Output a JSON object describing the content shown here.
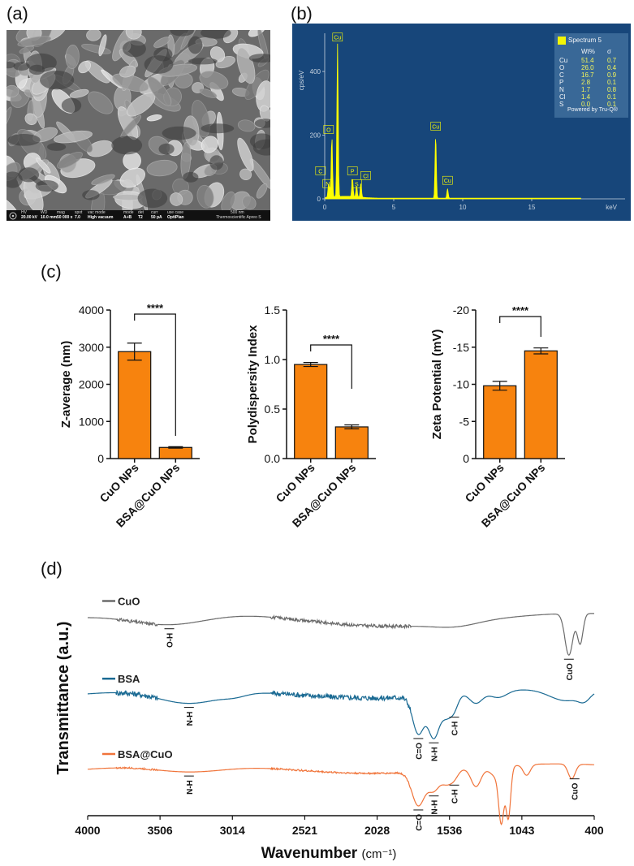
{
  "panels": {
    "a": "(a)",
    "b": "(b)",
    "c": "(c)",
    "d": "(d)"
  },
  "colors": {
    "bar_fill": "#f7830e",
    "cuo_line": "#6b6b6b",
    "bsa_line": "#1a6a93",
    "bsa_cuo_line": "#f0743a",
    "eds_bg": "#17467a",
    "eds_spectrum": "#ffff00"
  },
  "sem": {
    "info_bar": [
      {
        "k": "HV",
        "v": "20.00 kV"
      },
      {
        "k": "WD",
        "v": "10.0 mm"
      },
      {
        "k": "mag",
        "v": "50 000 x"
      },
      {
        "k": "spot",
        "v": "7.0"
      },
      {
        "k": "vac mode",
        "v": "High vacuum"
      },
      {
        "k": "mode",
        "v": "A+B"
      },
      {
        "k": "det",
        "v": "T2"
      },
      {
        "k": "curr",
        "v": "50 pA"
      },
      {
        "k": "use case",
        "v": "OptiPlan"
      }
    ],
    "scale_label": "500 nm",
    "brand": "Thermoscientific Apreo S"
  },
  "chart_data": [
    {
      "id": "eds",
      "type": "line",
      "title": "",
      "xlabel": "keV",
      "ylabel": "cps/eV",
      "xlim": [
        0,
        20
      ],
      "ylim": [
        0,
        520
      ],
      "x_ticks": [
        0,
        5,
        10,
        15
      ],
      "y_ticks": [
        0,
        200,
        400
      ],
      "peaks": [
        {
          "element": "C",
          "kev": 0.28,
          "cps": 40
        },
        {
          "element": "N",
          "kev": 0.39,
          "cps": 25
        },
        {
          "element": "O",
          "kev": 0.52,
          "cps": 190
        },
        {
          "element": "Cu",
          "kev": 0.93,
          "cps": 480
        },
        {
          "element": "P",
          "kev": 2.01,
          "cps": 60
        },
        {
          "element": "S",
          "kev": 2.31,
          "cps": 35
        },
        {
          "element": "Cl",
          "kev": 2.62,
          "cps": 45
        },
        {
          "element": "Cu",
          "kev": 8.04,
          "cps": 200
        },
        {
          "element": "Cu",
          "kev": 8.9,
          "cps": 30
        }
      ],
      "legend": {
        "series_name": "Spectrum 5",
        "headers": [
          "Wt%",
          "σ"
        ],
        "rows": [
          {
            "element": "Cu",
            "wt": "51.4",
            "sigma": "0.7"
          },
          {
            "element": "O",
            "wt": "26.0",
            "sigma": "0.4"
          },
          {
            "element": "C",
            "wt": "16.7",
            "sigma": "0.9"
          },
          {
            "element": "P",
            "wt": "2.8",
            "sigma": "0.1"
          },
          {
            "element": "N",
            "wt": "1.7",
            "sigma": "0.8"
          },
          {
            "element": "Cl",
            "wt": "1.4",
            "sigma": "0.1"
          },
          {
            "element": "S",
            "wt": "0.0",
            "sigma": "0.1"
          }
        ],
        "footer": "Powered by Tru-Q®"
      }
    },
    {
      "id": "zavg",
      "type": "bar",
      "categories": [
        "CuO NPs",
        "BSA@CuO NPs"
      ],
      "values": [
        2880,
        300
      ],
      "errors": [
        230,
        20
      ],
      "ylabel": "Z-average (nm)",
      "ylim": [
        0,
        4000
      ],
      "y_ticks": [
        "0",
        "1000",
        "2000",
        "3000",
        "4000"
      ],
      "significance": "****"
    },
    {
      "id": "pdi",
      "type": "bar",
      "categories": [
        "CuO NPs",
        "BSA@CuO NPs"
      ],
      "values": [
        0.95,
        0.32
      ],
      "errors": [
        0.02,
        0.02
      ],
      "ylabel": "Polydispersity Index",
      "ylim": [
        0,
        1.5
      ],
      "y_ticks": [
        "0.0",
        "0.5",
        "1.0",
        "1.5"
      ],
      "significance": "****"
    },
    {
      "id": "zeta",
      "type": "bar",
      "categories": [
        "CuO NPs",
        "BSA@CuO NPs"
      ],
      "values": [
        -9.8,
        -14.5
      ],
      "errors": [
        0.6,
        0.4
      ],
      "ylabel": "Zeta Potential (mV)",
      "ylim": [
        0,
        -20
      ],
      "y_ticks": [
        "0",
        "-5",
        "-10",
        "-15",
        "-20"
      ],
      "significance": "****"
    },
    {
      "id": "ftir",
      "type": "line",
      "xlabel": "Wavenumber",
      "xlabel_unit": "(cm⁻¹)",
      "ylabel": "Transmittance (a.u.)",
      "xlim": [
        4000,
        400
      ],
      "x_ticks": [
        "4000",
        "3506",
        "3014",
        "2521",
        "2028",
        "1536",
        "1043",
        "400"
      ],
      "series": [
        {
          "name": "CuO",
          "color": "#6b6b6b",
          "offset": 0.85,
          "noise": 3,
          "features": [
            [
              3420,
              20,
              280
            ],
            [
              1550,
              10,
              700
            ],
            [
              1380,
              6,
              150
            ],
            [
              580,
              62,
              28
            ],
            [
              500,
              45,
              20
            ]
          ]
        },
        {
          "name": "BSA",
          "color": "#1a6a93",
          "offset": 0.52,
          "noise": 5,
          "features": [
            [
              3280,
              22,
              230
            ],
            [
              2950,
              4,
              80
            ],
            [
              1650,
              55,
              40
            ],
            [
              1540,
              62,
              40
            ],
            [
              1450,
              28,
              35
            ],
            [
              1395,
              20,
              30
            ],
            [
              1240,
              16,
              45
            ],
            [
              1080,
              10,
              60
            ],
            [
              600,
              18,
              120
            ],
            [
              470,
              10,
              40
            ]
          ]
        },
        {
          "name": "BSA@CuO",
          "color": "#f0743a",
          "offset": 0.2,
          "noise": 1.5,
          "features": [
            [
              3280,
              12,
              260
            ],
            [
              1650,
              50,
              45
            ],
            [
              1540,
              28,
              40
            ],
            [
              1450,
              18,
              35
            ],
            [
              1395,
              12,
              30
            ],
            [
              1240,
              28,
              35
            ],
            [
              1080,
              18,
              50
            ],
            [
              1060,
              70,
              18
            ],
            [
              1010,
              72,
              16
            ],
            [
              880,
              16,
              25
            ],
            [
              560,
              22,
              25
            ]
          ]
        }
      ],
      "annotations": [
        {
          "label": "O-H",
          "series": "CuO",
          "wavenumber": 3420
        },
        {
          "label": "N-H",
          "series": "BSA",
          "wavenumber": 3280
        },
        {
          "label": "C=O",
          "series": "BSA",
          "wavenumber": 1650
        },
        {
          "label": "N-H",
          "series": "BSA",
          "wavenumber": 1540
        },
        {
          "label": "C-H",
          "series": "BSA",
          "wavenumber": 1395
        },
        {
          "label": "CuO",
          "series": "CuO",
          "wavenumber": 580
        },
        {
          "label": "N-H",
          "series": "BSA@CuO",
          "wavenumber": 3280
        },
        {
          "label": "C=O",
          "series": "BSA@CuO",
          "wavenumber": 1650
        },
        {
          "label": "N-H",
          "series": "BSA@CuO",
          "wavenumber": 1540
        },
        {
          "label": "C-H",
          "series": "BSA@CuO",
          "wavenumber": 1395
        },
        {
          "label": "CuO",
          "series": "BSA@CuO",
          "wavenumber": 540
        }
      ]
    }
  ]
}
